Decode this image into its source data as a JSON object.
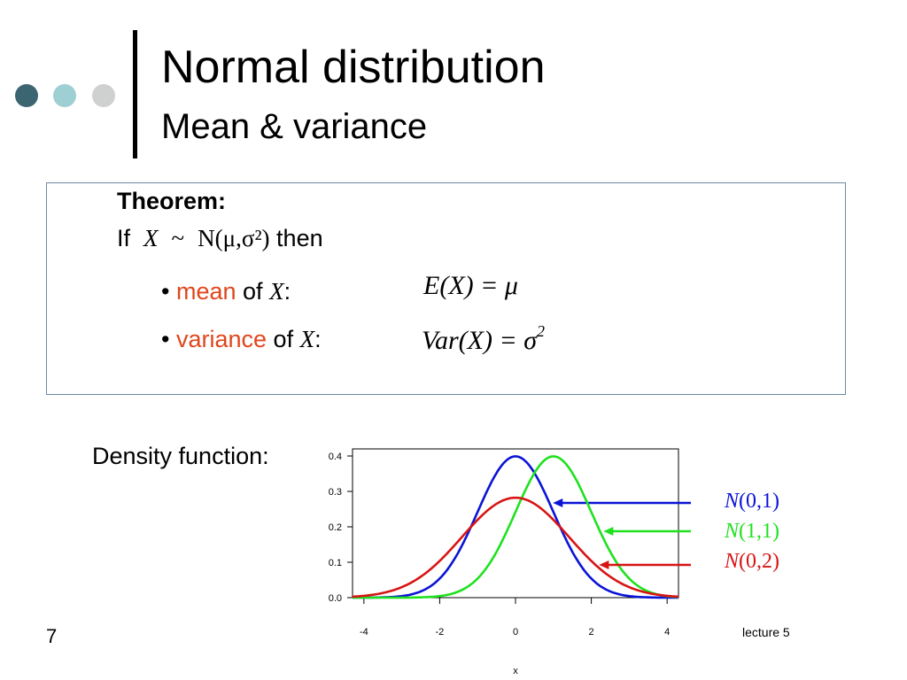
{
  "slide": {
    "title": "Normal distribution",
    "subtitle": "Mean & variance",
    "page_number": "7",
    "footer": "lecture 5",
    "colors": {
      "dot1": "#3b6570",
      "dot2": "#9ecfd2",
      "dot3": "#cfd0d0",
      "accent": "#e0461c"
    }
  },
  "theorem": {
    "heading": "Theorem:",
    "if_word": "If",
    "x_var": "X",
    "tilde": "~",
    "dist": "N(μ,σ²)",
    "then_word": "then",
    "mean_word": "mean",
    "variance_word": "variance",
    "of_word": "of",
    "colon": ":",
    "bullet": "•",
    "mean_formula": "E(X) = μ",
    "variance_formula": "Var(X) = σ",
    "variance_exp": "2"
  },
  "density": {
    "label": "Density function:"
  },
  "chart_data": {
    "type": "line",
    "xlabel": "x",
    "ylabel": "",
    "xlim": [
      -4.3,
      4.3
    ],
    "ylim": [
      0,
      0.42
    ],
    "xticks": [
      "-4",
      "-2",
      "0",
      "2",
      "4"
    ],
    "yticks": [
      "0.0",
      "0.1",
      "0.2",
      "0.3",
      "0.4"
    ],
    "series": [
      {
        "name": "N(0,1)",
        "color": "#0a14d6",
        "mean": 0,
        "variance": 1
      },
      {
        "name": "N(1,1)",
        "color": "#1fe11f",
        "mean": 1,
        "variance": 1
      },
      {
        "name": "N(0,2)",
        "color": "#d81414",
        "mean": 0,
        "variance": 2
      }
    ]
  }
}
